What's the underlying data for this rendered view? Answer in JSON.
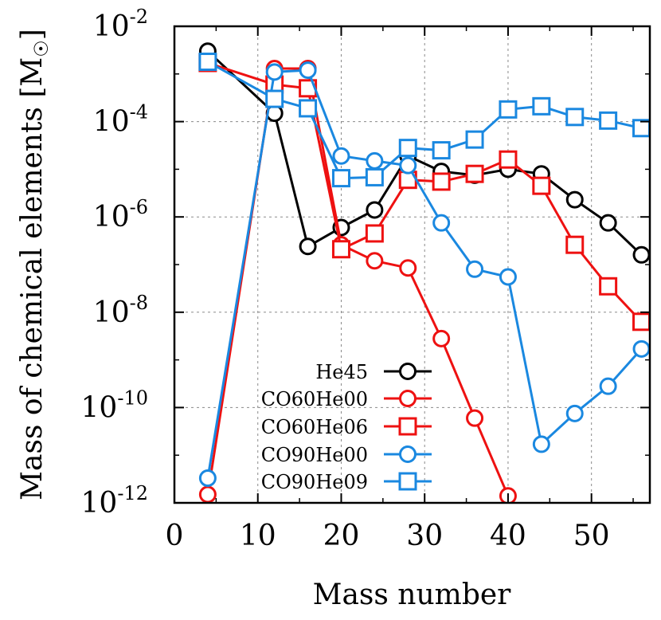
{
  "chart_data": {
    "type": "line",
    "xlabel": "Mass number",
    "ylabel": "Mass of chemical elements [M",
    "ylabel_symbol": "☉",
    "ylabel_close": "]",
    "xlim": [
      0,
      57
    ],
    "ylim_log10": [
      -12,
      -2
    ],
    "y_scale": "log",
    "grid": true,
    "legend_position": "bottom-center",
    "x_ticks": [
      0,
      10,
      20,
      30,
      40,
      50
    ],
    "y_ticks": [
      {
        "base": "10",
        "exp": "-12",
        "value": -12
      },
      {
        "base": "10",
        "exp": "-10",
        "value": -10
      },
      {
        "base": "10",
        "exp": "-8",
        "value": -8
      },
      {
        "base": "10",
        "exp": "-6",
        "value": -6
      },
      {
        "base": "10",
        "exp": "-4",
        "value": -4
      },
      {
        "base": "10",
        "exp": "-2",
        "value": -2
      }
    ],
    "series": [
      {
        "name": "He45",
        "color": "#000000",
        "marker": "circle",
        "x": [
          4,
          12,
          16,
          20,
          24,
          28,
          32,
          36,
          40,
          44,
          48,
          52,
          56
        ],
        "y": [
          0.003,
          0.00015,
          2.4e-07,
          6e-07,
          1.4e-06,
          1.9e-05,
          9e-06,
          7.5e-06,
          1e-05,
          8e-06,
          2.3e-06,
          7.5e-07,
          1.6e-07
        ]
      },
      {
        "name": "CO60He00",
        "color": "#ee1111",
        "marker": "circle",
        "x": [
          4,
          12,
          16,
          20,
          24,
          28,
          32,
          36,
          40
        ],
        "y": [
          1.5e-12,
          0.0013,
          0.0013,
          2.6e-07,
          1.2e-07,
          8.5e-08,
          2.8e-09,
          6e-11,
          1.4e-12
        ]
      },
      {
        "name": "CO60He06",
        "color": "#ee1111",
        "marker": "square",
        "x": [
          4,
          12,
          16,
          20,
          24,
          28,
          32,
          36,
          40,
          44,
          48,
          52,
          56
        ],
        "y": [
          0.0017,
          0.0006,
          0.0005,
          2.1e-07,
          4.5e-07,
          6e-06,
          5.5e-06,
          8e-06,
          1.6e-05,
          4.5e-06,
          2.6e-07,
          3.5e-08,
          6.3e-09
        ]
      },
      {
        "name": "CO90He00",
        "color": "#1a88e0",
        "marker": "circle",
        "x": [
          4,
          12,
          16,
          20,
          24,
          28,
          32,
          36,
          40,
          44,
          48,
          52,
          56
        ],
        "y": [
          3.3e-12,
          0.0011,
          0.0012,
          1.9e-05,
          1.5e-05,
          1.2e-05,
          7.5e-07,
          8e-08,
          5.5e-08,
          1.7e-11,
          7.5e-11,
          2.8e-10,
          1.7e-09
        ]
      },
      {
        "name": "CO90He09",
        "color": "#1a88e0",
        "marker": "square",
        "x": [
          4,
          12,
          16,
          20,
          24,
          28,
          32,
          36,
          40,
          44,
          48,
          52,
          56
        ],
        "y": [
          0.0018,
          0.0003,
          0.00019,
          6.5e-06,
          6.8e-06,
          2.8e-05,
          2.5e-05,
          4.2e-05,
          0.00018,
          0.00021,
          0.000125,
          0.000105,
          7.3e-05
        ]
      }
    ]
  }
}
